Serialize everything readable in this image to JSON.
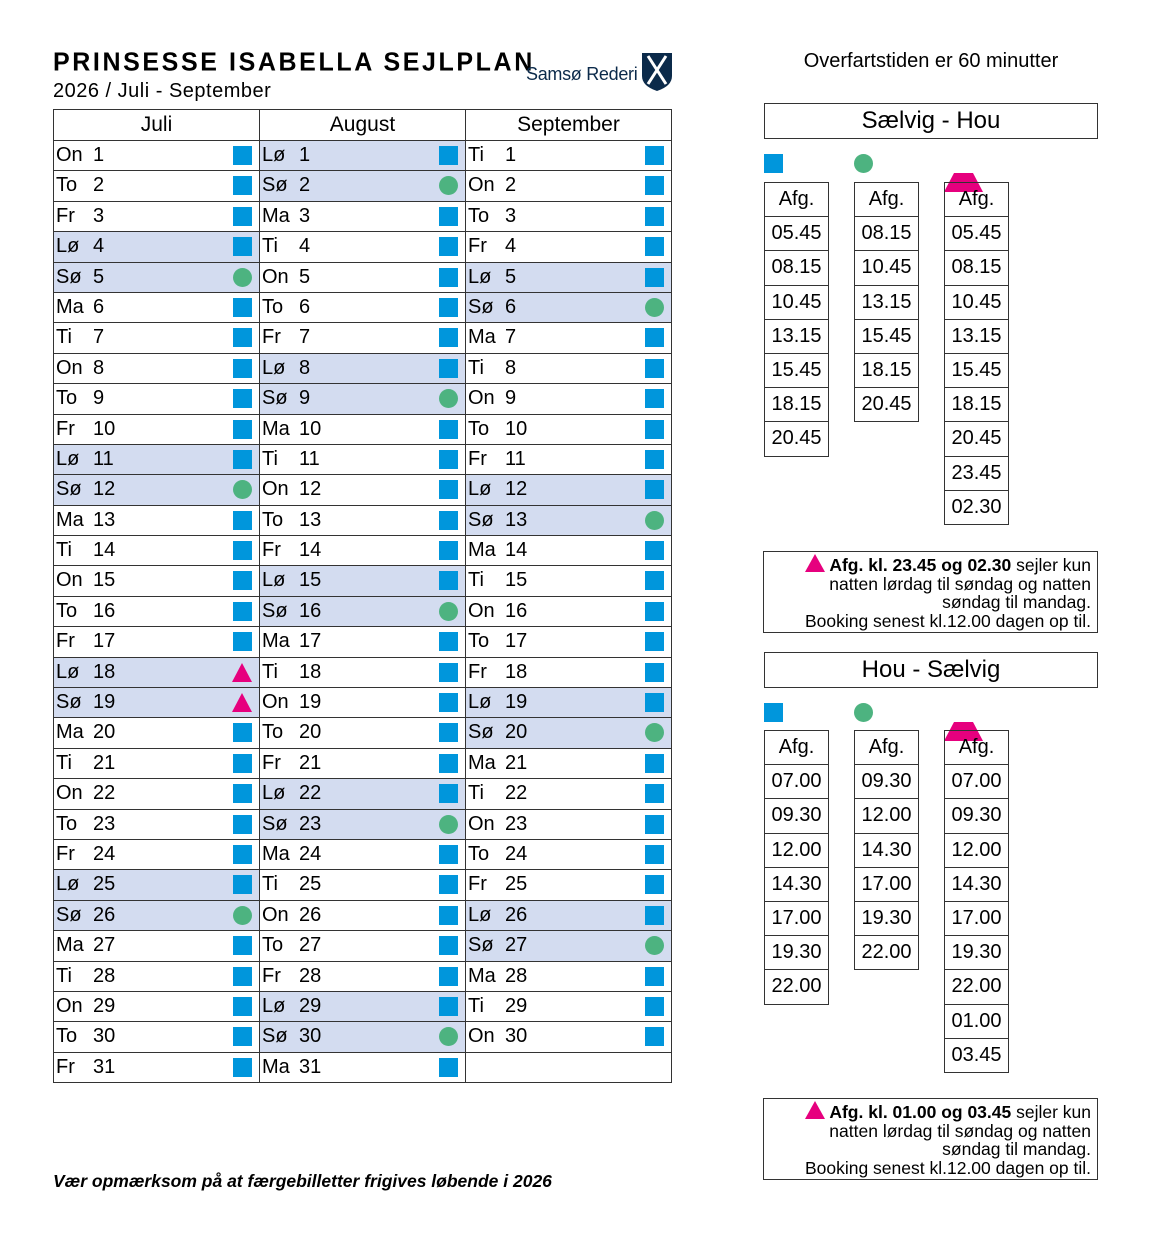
{
  "header": {
    "title": "PRINSESSE ISABELLA SEJLPLAN",
    "subtitle": "2026 / Juli - September",
    "logo_text": "Samsø Rederi"
  },
  "colors": {
    "square": "#0096dc",
    "circle": "#4db380",
    "triangle": "#e6007e",
    "weekend_row": "#d3dcf0"
  },
  "legend": {
    "square": "blue-square-icon",
    "circle": "green-circle-icon",
    "triangle": "magenta-triangle-icon"
  },
  "calendar": {
    "months": [
      {
        "name": "Juli",
        "rows": [
          [
            "On",
            "1",
            "square"
          ],
          [
            "To",
            "2",
            "square"
          ],
          [
            "Fr",
            "3",
            "square"
          ],
          [
            "Lø",
            "4",
            "square"
          ],
          [
            "Sø",
            "5",
            "circle"
          ],
          [
            "Ma",
            "6",
            "square"
          ],
          [
            "Ti",
            "7",
            "square"
          ],
          [
            "On",
            "8",
            "square"
          ],
          [
            "To",
            "9",
            "square"
          ],
          [
            "Fr",
            "10",
            "square"
          ],
          [
            "Lø",
            "11",
            "square"
          ],
          [
            "Sø",
            "12",
            "circle"
          ],
          [
            "Ma",
            "13",
            "square"
          ],
          [
            "Ti",
            "14",
            "square"
          ],
          [
            "On",
            "15",
            "square"
          ],
          [
            "To",
            "16",
            "square"
          ],
          [
            "Fr",
            "17",
            "square"
          ],
          [
            "Lø",
            "18",
            "triangle"
          ],
          [
            "Sø",
            "19",
            "triangle"
          ],
          [
            "Ma",
            "20",
            "square"
          ],
          [
            "Ti",
            "21",
            "square"
          ],
          [
            "On",
            "22",
            "square"
          ],
          [
            "To",
            "23",
            "square"
          ],
          [
            "Fr",
            "24",
            "square"
          ],
          [
            "Lø",
            "25",
            "square"
          ],
          [
            "Sø",
            "26",
            "circle"
          ],
          [
            "Ma",
            "27",
            "square"
          ],
          [
            "Ti",
            "28",
            "square"
          ],
          [
            "On",
            "29",
            "square"
          ],
          [
            "To",
            "30",
            "square"
          ],
          [
            "Fr",
            "31",
            "square"
          ]
        ]
      },
      {
        "name": "August",
        "rows": [
          [
            "Lø",
            "1",
            "square"
          ],
          [
            "Sø",
            "2",
            "circle"
          ],
          [
            "Ma",
            "3",
            "square"
          ],
          [
            "Ti",
            "4",
            "square"
          ],
          [
            "On",
            "5",
            "square"
          ],
          [
            "To",
            "6",
            "square"
          ],
          [
            "Fr",
            "7",
            "square"
          ],
          [
            "Lø",
            "8",
            "square"
          ],
          [
            "Sø",
            "9",
            "circle"
          ],
          [
            "Ma",
            "10",
            "square"
          ],
          [
            "Ti",
            "11",
            "square"
          ],
          [
            "On",
            "12",
            "square"
          ],
          [
            "To",
            "13",
            "square"
          ],
          [
            "Fr",
            "14",
            "square"
          ],
          [
            "Lø",
            "15",
            "square"
          ],
          [
            "Sø",
            "16",
            "circle"
          ],
          [
            "Ma",
            "17",
            "square"
          ],
          [
            "Ti",
            "18",
            "square"
          ],
          [
            "On",
            "19",
            "square"
          ],
          [
            "To",
            "20",
            "square"
          ],
          [
            "Fr",
            "21",
            "square"
          ],
          [
            "Lø",
            "22",
            "square"
          ],
          [
            "Sø",
            "23",
            "circle"
          ],
          [
            "Ma",
            "24",
            "square"
          ],
          [
            "Ti",
            "25",
            "square"
          ],
          [
            "On",
            "26",
            "square"
          ],
          [
            "To",
            "27",
            "square"
          ],
          [
            "Fr",
            "28",
            "square"
          ],
          [
            "Lø",
            "29",
            "square"
          ],
          [
            "Sø",
            "30",
            "circle"
          ],
          [
            "Ma",
            "31",
            "square"
          ]
        ]
      },
      {
        "name": "September",
        "rows": [
          [
            "Ti",
            "1",
            "square"
          ],
          [
            "On",
            "2",
            "square"
          ],
          [
            "To",
            "3",
            "square"
          ],
          [
            "Fr",
            "4",
            "square"
          ],
          [
            "Lø",
            "5",
            "square"
          ],
          [
            "Sø",
            "6",
            "circle"
          ],
          [
            "Ma",
            "7",
            "square"
          ],
          [
            "Ti",
            "8",
            "square"
          ],
          [
            "On",
            "9",
            "square"
          ],
          [
            "To",
            "10",
            "square"
          ],
          [
            "Fr",
            "11",
            "square"
          ],
          [
            "Lø",
            "12",
            "square"
          ],
          [
            "Sø",
            "13",
            "circle"
          ],
          [
            "Ma",
            "14",
            "square"
          ],
          [
            "Ti",
            "15",
            "square"
          ],
          [
            "On",
            "16",
            "square"
          ],
          [
            "To",
            "17",
            "square"
          ],
          [
            "Fr",
            "18",
            "square"
          ],
          [
            "Lø",
            "19",
            "square"
          ],
          [
            "Sø",
            "20",
            "circle"
          ],
          [
            "Ma",
            "21",
            "square"
          ],
          [
            "Ti",
            "22",
            "square"
          ],
          [
            "On",
            "23",
            "square"
          ],
          [
            "To",
            "24",
            "square"
          ],
          [
            "Fr",
            "25",
            "square"
          ],
          [
            "Lø",
            "26",
            "square"
          ],
          [
            "Sø",
            "27",
            "circle"
          ],
          [
            "Ma",
            "28",
            "square"
          ],
          [
            "Ti",
            "29",
            "square"
          ],
          [
            "On",
            "30",
            "square"
          ]
        ]
      }
    ]
  },
  "travel_time": "Overfartstiden er 60 minutter",
  "routes": [
    {
      "name": "Sælvig - Hou",
      "columns": [
        {
          "marker": "square",
          "header": "Afg.",
          "times": [
            "05.45",
            "08.15",
            "10.45",
            "13.15",
            "15.45",
            "18.15",
            "20.45"
          ]
        },
        {
          "marker": "circle",
          "header": "Afg.",
          "times": [
            "08.15",
            "10.45",
            "13.15",
            "15.45",
            "18.15",
            "20.45"
          ]
        },
        {
          "marker": "triangle",
          "header": "Afg.",
          "times": [
            "05.45",
            "08.15",
            "10.45",
            "13.15",
            "15.45",
            "18.15",
            "20.45",
            "23.45",
            "02.30"
          ]
        }
      ],
      "note": {
        "bold": "Afg. kl. 23.45 og 02.30",
        "l1": " sejler kun",
        "l2": "natten lørdag til søndag og natten",
        "l3": "søndag til mandag.",
        "l4": "Booking senest kl.12.00 dagen op til."
      }
    },
    {
      "name": "Hou - Sælvig",
      "columns": [
        {
          "marker": "square",
          "header": "Afg.",
          "times": [
            "07.00",
            "09.30",
            "12.00",
            "14.30",
            "17.00",
            "19.30",
            "22.00"
          ]
        },
        {
          "marker": "circle",
          "header": "Afg.",
          "times": [
            "09.30",
            "12.00",
            "14.30",
            "17.00",
            "19.30",
            "22.00"
          ]
        },
        {
          "marker": "triangle",
          "header": "Afg.",
          "times": [
            "07.00",
            "09.30",
            "12.00",
            "14.30",
            "17.00",
            "19.30",
            "22.00",
            "01.00",
            "03.45"
          ]
        }
      ],
      "note": {
        "bold": "Afg. kl. 01.00 og 03.45",
        "l1": " sejler kun",
        "l2": "natten lørdag til søndag og natten",
        "l3": "søndag til mandag.",
        "l4": "Booking senest kl.12.00 dagen op til."
      }
    }
  ],
  "footer": "Vær opmærksom på at færgebilletter frigives løbende i 2026"
}
